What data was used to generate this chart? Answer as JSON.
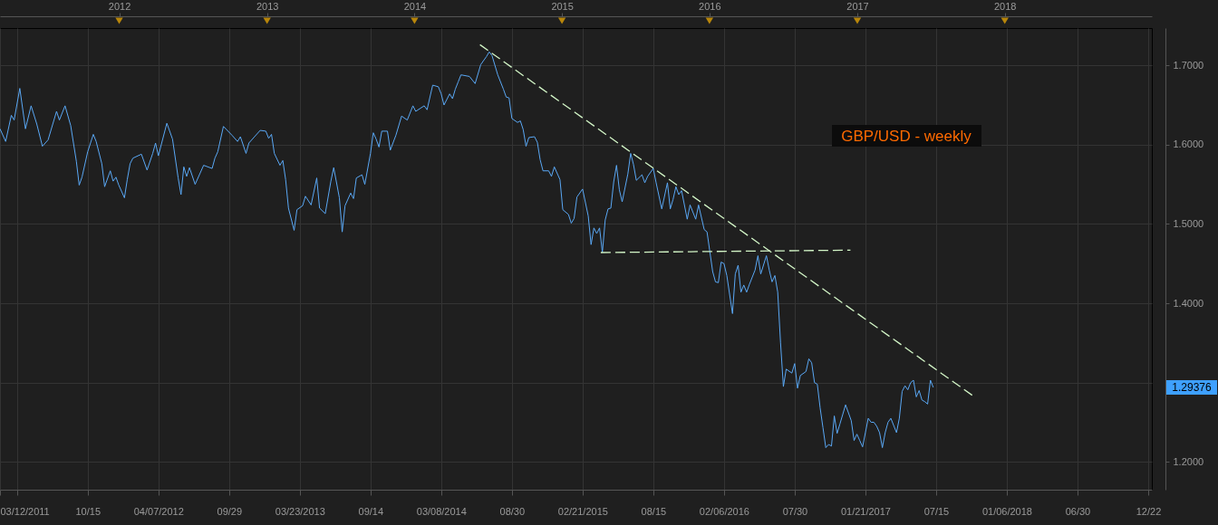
{
  "chart_data": {
    "type": "line",
    "title": "GBP/USD - weekly",
    "xlim": [
      "2011-03-12",
      "2018-12-31"
    ],
    "xticks": [
      {
        "value": "2011-03-12",
        "label": "03/12/2011"
      },
      {
        "value": "2011-04-23",
        "label": null
      },
      {
        "value": "2011-10-15",
        "label": "10/15"
      },
      {
        "value": "2012-04-07",
        "label": "04/07/2012"
      },
      {
        "value": "2012-09-29",
        "label": "09/29"
      },
      {
        "value": "2013-03-23",
        "label": "03/23/2013"
      },
      {
        "value": "2013-09-14",
        "label": "09/14"
      },
      {
        "value": "2014-03-08",
        "label": "03/08/2014"
      },
      {
        "value": "2014-08-30",
        "label": "08/30"
      },
      {
        "value": "2015-02-21",
        "label": "02/21/2015"
      },
      {
        "value": "2015-08-15",
        "label": "08/15"
      },
      {
        "value": "2016-02-06",
        "label": "02/06/2016"
      },
      {
        "value": "2016-07-30",
        "label": "07/30"
      },
      {
        "value": "2017-01-21",
        "label": "01/21/2017"
      },
      {
        "value": "2017-07-15",
        "label": "07/15"
      },
      {
        "value": "2018-01-06",
        "label": "01/06/2018"
      },
      {
        "value": "2018-06-30",
        "label": "06/30"
      },
      {
        "value": "2018-12-22",
        "label": "12/22"
      }
    ],
    "x2lim": [
      "2011-03-12",
      "2018-12-31"
    ],
    "x2ticks": [
      {
        "value": "2012-01-01",
        "label": "2012"
      },
      {
        "value": "2013-01-01",
        "label": "2013"
      },
      {
        "value": "2014-01-01",
        "label": "2014"
      },
      {
        "value": "2015-01-01",
        "label": "2015"
      },
      {
        "value": "2016-01-01",
        "label": "2016"
      },
      {
        "value": "2017-01-01",
        "label": "2017"
      },
      {
        "value": "2018-01-01",
        "label": "2018"
      }
    ],
    "ylim": [
      1.165,
      1.747
    ],
    "yticks": [
      {
        "value": 1.2,
        "label": "1.2000"
      },
      {
        "value": 1.3,
        "label": null
      },
      {
        "value": 1.4,
        "label": "1.4000"
      },
      {
        "value": 1.5,
        "label": "1.5000"
      },
      {
        "value": 1.6,
        "label": "1.6000"
      },
      {
        "value": 1.7,
        "label": "1.7000"
      }
    ],
    "grid": true,
    "series": [
      {
        "color": "#5aa8f5",
        "x": [
          "2011-03-12",
          "2011-03-26",
          "2011-04-09",
          "2011-04-16",
          "2011-04-30",
          "2011-05-14",
          "2011-05-28",
          "2011-06-11",
          "2011-06-25",
          "2011-07-09",
          "2011-07-30",
          "2011-08-06",
          "2011-08-20",
          "2011-09-03",
          "2011-09-17",
          "2011-09-24",
          "2011-10-01",
          "2011-10-15",
          "2011-10-29",
          "2011-11-05",
          "2011-11-19",
          "2011-11-26",
          "2011-12-10",
          "2011-12-17",
          "2011-12-24",
          "2011-12-31",
          "2012-01-14",
          "2012-01-21",
          "2012-01-28",
          "2012-02-04",
          "2012-02-25",
          "2012-03-10",
          "2012-03-24",
          "2012-03-31",
          "2012-04-07",
          "2012-04-28",
          "2012-05-12",
          "2012-05-26",
          "2012-06-02",
          "2012-06-09",
          "2012-06-16",
          "2012-06-23",
          "2012-07-07",
          "2012-07-28",
          "2012-08-18",
          "2012-08-25",
          "2012-09-01",
          "2012-09-15",
          "2012-10-06",
          "2012-10-20",
          "2012-10-27",
          "2012-11-10",
          "2012-11-17",
          "2012-12-01",
          "2012-12-15",
          "2012-12-29",
          "2013-01-05",
          "2013-01-12",
          "2013-01-19",
          "2013-02-02",
          "2013-02-09",
          "2013-02-16",
          "2013-02-23",
          "2013-03-09",
          "2013-03-16",
          "2013-03-30",
          "2013-04-06",
          "2013-04-20",
          "2013-05-04",
          "2013-05-11",
          "2013-05-25",
          "2013-06-08",
          "2013-06-15",
          "2013-06-29",
          "2013-07-06",
          "2013-07-13",
          "2013-07-27",
          "2013-08-03",
          "2013-08-10",
          "2013-08-24",
          "2013-08-31",
          "2013-09-14",
          "2013-09-21",
          "2013-09-28",
          "2013-10-05",
          "2013-10-12",
          "2013-10-26",
          "2013-11-02",
          "2013-11-16",
          "2013-11-30",
          "2013-12-14",
          "2013-12-28",
          "2014-01-04",
          "2014-01-25",
          "2014-02-01",
          "2014-02-15",
          "2014-03-01",
          "2014-03-08",
          "2014-03-15",
          "2014-03-29",
          "2014-04-05",
          "2014-04-12",
          "2014-04-19",
          "2014-04-26",
          "2014-05-17",
          "2014-05-31",
          "2014-06-14",
          "2014-06-28",
          "2014-07-05",
          "2014-07-12",
          "2014-07-26",
          "2014-08-09",
          "2014-08-16",
          "2014-08-23",
          "2014-08-30",
          "2014-09-13",
          "2014-09-20",
          "2014-09-27",
          "2014-10-04",
          "2014-10-11",
          "2014-10-25",
          "2014-11-01",
          "2014-11-08",
          "2014-11-15",
          "2014-11-29",
          "2014-12-06",
          "2014-12-13",
          "2014-12-27",
          "2015-01-03",
          "2015-01-17",
          "2015-01-24",
          "2015-01-31",
          "2015-02-07",
          "2015-02-21",
          "2015-03-07",
          "2015-03-14",
          "2015-03-21",
          "2015-03-28",
          "2015-04-04",
          "2015-04-11",
          "2015-04-18",
          "2015-04-25",
          "2015-05-02",
          "2015-05-09",
          "2015-05-16",
          "2015-05-23",
          "2015-05-30",
          "2015-06-13",
          "2015-06-20",
          "2015-06-27",
          "2015-07-04",
          "2015-07-18",
          "2015-07-25",
          "2015-08-01",
          "2015-08-15",
          "2015-08-22",
          "2015-09-05",
          "2015-09-19",
          "2015-09-26",
          "2015-10-03",
          "2015-10-10",
          "2015-10-17",
          "2015-10-24",
          "2015-11-07",
          "2015-11-14",
          "2015-11-28",
          "2015-12-05",
          "2015-12-19",
          "2015-12-26",
          "2016-01-02",
          "2016-01-09",
          "2016-01-16",
          "2016-01-23",
          "2016-01-30",
          "2016-02-06",
          "2016-02-13",
          "2016-02-27",
          "2016-03-05",
          "2016-03-12",
          "2016-03-19",
          "2016-03-26",
          "2016-04-02",
          "2016-04-09",
          "2016-04-23",
          "2016-04-30",
          "2016-05-07",
          "2016-05-21",
          "2016-05-28",
          "2016-06-04",
          "2016-06-11",
          "2016-06-18",
          "2016-06-25",
          "2016-07-02",
          "2016-07-09",
          "2016-07-23",
          "2016-07-30",
          "2016-08-06",
          "2016-08-13",
          "2016-08-27",
          "2016-09-03",
          "2016-09-10",
          "2016-09-17",
          "2016-09-24",
          "2016-10-01",
          "2016-10-08",
          "2016-10-15",
          "2016-10-22",
          "2016-10-29",
          "2016-11-05",
          "2016-11-12",
          "2016-11-19",
          "2016-12-03",
          "2016-12-10",
          "2016-12-17",
          "2016-12-24",
          "2016-12-31",
          "2017-01-07",
          "2017-01-14",
          "2017-01-21",
          "2017-01-28",
          "2017-02-04",
          "2017-02-11",
          "2017-02-18",
          "2017-02-25",
          "2017-03-04",
          "2017-03-11",
          "2017-03-18",
          "2017-03-25",
          "2017-04-08",
          "2017-04-15",
          "2017-04-22",
          "2017-04-29",
          "2017-05-06",
          "2017-05-13",
          "2017-05-20",
          "2017-05-27",
          "2017-06-03",
          "2017-06-10",
          "2017-06-17",
          "2017-06-24",
          "2017-07-01",
          "2017-07-08"
        ],
        "values": [
          1.62,
          1.604,
          1.637,
          1.631,
          1.671,
          1.62,
          1.649,
          1.626,
          1.598,
          1.606,
          1.642,
          1.631,
          1.649,
          1.624,
          1.579,
          1.549,
          1.559,
          1.591,
          1.613,
          1.604,
          1.576,
          1.547,
          1.567,
          1.554,
          1.559,
          1.549,
          1.533,
          1.556,
          1.576,
          1.583,
          1.588,
          1.568,
          1.589,
          1.602,
          1.586,
          1.627,
          1.607,
          1.558,
          1.537,
          1.572,
          1.56,
          1.571,
          1.55,
          1.574,
          1.57,
          1.583,
          1.591,
          1.623,
          1.612,
          1.604,
          1.61,
          1.589,
          1.602,
          1.61,
          1.618,
          1.617,
          1.608,
          1.613,
          1.589,
          1.574,
          1.58,
          1.556,
          1.52,
          1.492,
          1.518,
          1.523,
          1.535,
          1.524,
          1.558,
          1.52,
          1.513,
          1.554,
          1.571,
          1.533,
          1.49,
          1.523,
          1.539,
          1.532,
          1.558,
          1.562,
          1.55,
          1.589,
          1.615,
          1.607,
          1.597,
          1.617,
          1.617,
          1.593,
          1.612,
          1.636,
          1.631,
          1.649,
          1.642,
          1.649,
          1.644,
          1.675,
          1.673,
          1.664,
          1.65,
          1.664,
          1.658,
          1.67,
          1.679,
          1.688,
          1.686,
          1.677,
          1.701,
          1.711,
          1.717,
          1.712,
          1.688,
          1.67,
          1.66,
          1.659,
          1.633,
          1.628,
          1.63,
          1.619,
          1.598,
          1.609,
          1.61,
          1.603,
          1.581,
          1.567,
          1.567,
          1.56,
          1.572,
          1.556,
          1.518,
          1.512,
          1.501,
          1.507,
          1.534,
          1.544,
          1.51,
          1.474,
          1.495,
          1.488,
          1.495,
          1.464,
          1.505,
          1.519,
          1.52,
          1.553,
          1.574,
          1.543,
          1.528,
          1.563,
          1.589,
          1.575,
          1.555,
          1.562,
          1.552,
          1.56,
          1.57,
          1.552,
          1.519,
          1.552,
          1.519,
          1.531,
          1.547,
          1.537,
          1.542,
          1.506,
          1.524,
          1.506,
          1.524,
          1.493,
          1.49,
          1.465,
          1.44,
          1.427,
          1.426,
          1.452,
          1.45,
          1.435,
          1.387,
          1.437,
          1.448,
          1.414,
          1.423,
          1.414,
          1.424,
          1.442,
          1.46,
          1.437,
          1.46,
          1.442,
          1.427,
          1.435,
          1.414,
          1.35,
          1.295,
          1.317,
          1.312,
          1.324,
          1.293,
          1.309,
          1.314,
          1.33,
          1.325,
          1.3,
          1.298,
          1.268,
          1.243,
          1.218,
          1.222,
          1.22,
          1.258,
          1.236,
          1.248,
          1.272,
          1.262,
          1.252,
          1.227,
          1.235,
          1.227,
          1.219,
          1.237,
          1.255,
          1.25,
          1.25,
          1.245,
          1.237,
          1.218,
          1.237,
          1.25,
          1.255,
          1.237,
          1.255,
          1.289,
          1.296,
          1.291,
          1.3,
          1.303,
          1.282,
          1.29,
          1.278,
          1.276,
          1.273,
          1.303,
          1.294
        ]
      },
      {
        "type": "line",
        "color": "#d4f7c8",
        "line_style": "dashed",
        "x": [
          "2014-06-12",
          "2017-10-18"
        ],
        "values": [
          1.726,
          1.282
        ]
      },
      {
        "type": "line",
        "color": "#d4f7c8",
        "line_style": "dashed",
        "x": [
          "2015-04-07",
          "2016-12-15"
        ],
        "values": [
          1.464,
          1.467
        ]
      }
    ],
    "annotations": [
      "1.29376"
    ]
  }
}
